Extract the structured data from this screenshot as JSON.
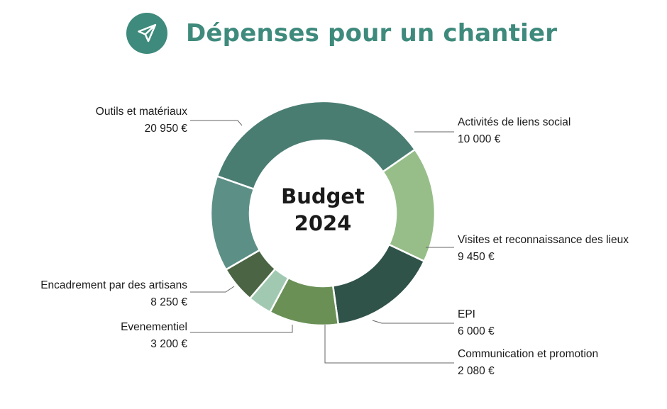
{
  "header": {
    "title": "Dépenses pour un chantier",
    "icon": "paper-plane-icon",
    "accent_color": "#3e8a7c"
  },
  "chart_data": {
    "type": "pie",
    "donut": true,
    "center_label": [
      "Budget",
      "2024"
    ],
    "slices": [
      {
        "label": "Outils et matériaux",
        "value": 20950,
        "value_text": "20 950 €",
        "color": "#4a7d72"
      },
      {
        "label": "Activités de liens social",
        "value": 10000,
        "value_text": "10 000 €",
        "color": "#97be89"
      },
      {
        "label": "Visites et reconnaissance des lieux",
        "value": 9450,
        "value_text": "9 450 €",
        "color": "#2f5249"
      },
      {
        "label": "EPI",
        "value": 6000,
        "value_text": "6 000 €",
        "color": "#6a9056"
      },
      {
        "label": "Communication et promotion",
        "value": 2080,
        "value_text": "2 080 €",
        "color": "#a1c9b2"
      },
      {
        "label": "Evenementiel",
        "value": 3200,
        "value_text": "3 200 €",
        "color": "#4b6443"
      },
      {
        "label": "Encadrement par des artisans",
        "value": 8250,
        "value_text": "8 250 €",
        "color": "#5c9087"
      }
    ]
  }
}
